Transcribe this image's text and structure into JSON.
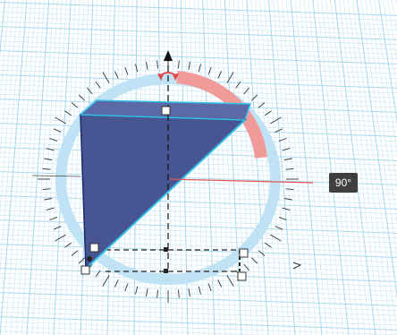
{
  "workplane": {
    "grid_minor_color": "#cfe9f6",
    "grid_major_color": "#a9d7ee",
    "background_color": "#ffffff"
  },
  "shape": {
    "type": "wedge",
    "face_color": "#475592",
    "top_color": "#5b69a6",
    "edge_highlight_color": "#35c2ea"
  },
  "rotation_gizmo": {
    "ring_color": "#bfe3f4",
    "active_arc_color": "#f08d8d",
    "active_axis_line_color": "#e05555",
    "tick_color": "#333333"
  },
  "angle_tooltip": {
    "value": "90°"
  },
  "icons": {
    "rotate_arrow": "rotate-arrow-icon",
    "axis_cone": "up-cone-icon",
    "angle_marker": "angle-marker-icon"
  }
}
